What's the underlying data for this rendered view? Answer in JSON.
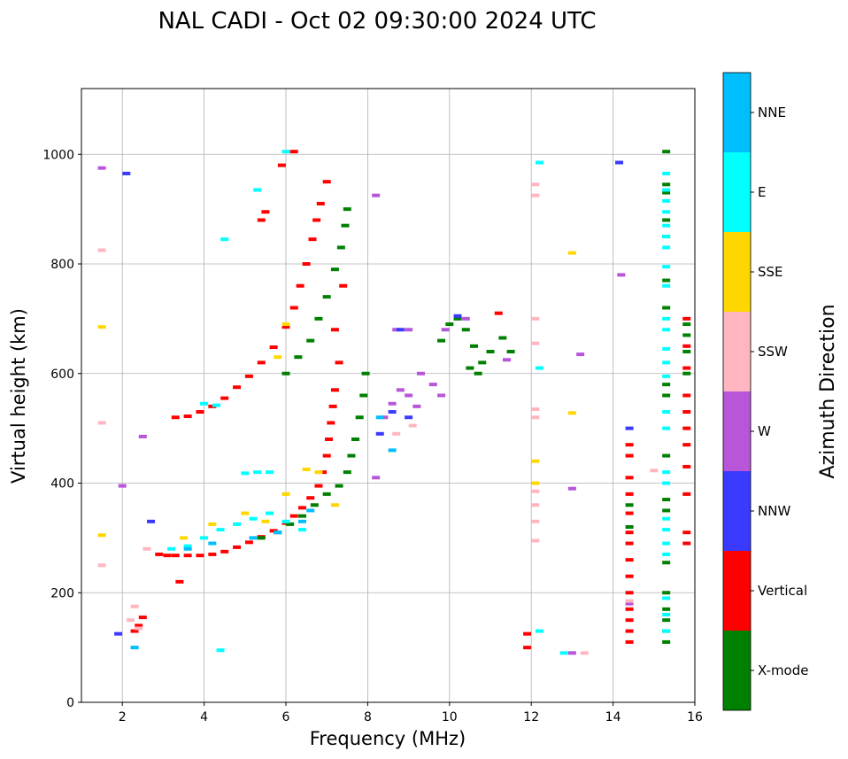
{
  "chart_data": {
    "type": "scatter",
    "title": "NAL CADI - Oct 02 09:30:00 2024 UTC",
    "xlabel": "Frequency (MHz)",
    "ylabel": "Virtual height (km)",
    "xlim": [
      1,
      16
    ],
    "ylim": [
      0,
      1120
    ],
    "xticks": [
      2,
      4,
      6,
      8,
      10,
      12,
      14,
      16
    ],
    "xtick_labels": [
      "2",
      "4",
      "6",
      "8",
      "10",
      "12",
      "14",
      "16"
    ],
    "yticks": [
      0,
      200,
      400,
      600,
      800,
      1000
    ],
    "ytick_labels": [
      "0",
      "200",
      "400",
      "600",
      "800",
      "1000"
    ],
    "grid": true,
    "colorbar": {
      "title": "Azimuth Direction",
      "categories": [
        "X-mode",
        "Vertical",
        "NNW",
        "W",
        "SSW",
        "SSE",
        "E",
        "NNE"
      ],
      "colors": [
        "#008000",
        "#ff0000",
        "#3a3aff",
        "#b955d9",
        "#ffb6c1",
        "#ffd700",
        "#00ffff",
        "#00bfff"
      ]
    },
    "series": [
      {
        "name": "Vertical",
        "category": "Vertical",
        "points": [
          [
            2.9,
            270
          ],
          [
            3.1,
            268
          ],
          [
            3.3,
            268
          ],
          [
            3.6,
            268
          ],
          [
            3.9,
            268
          ],
          [
            4.2,
            270
          ],
          [
            4.5,
            275
          ],
          [
            4.8,
            283
          ],
          [
            5.1,
            292
          ],
          [
            5.4,
            302
          ],
          [
            5.7,
            313
          ],
          [
            6.0,
            327
          ],
          [
            6.2,
            340
          ],
          [
            6.4,
            355
          ],
          [
            6.6,
            373
          ],
          [
            6.8,
            395
          ],
          [
            6.9,
            420
          ],
          [
            7.0,
            450
          ],
          [
            7.05,
            480
          ],
          [
            7.1,
            510
          ],
          [
            7.15,
            540
          ],
          [
            7.2,
            570
          ],
          [
            3.3,
            520
          ],
          [
            3.6,
            522
          ],
          [
            3.9,
            530
          ],
          [
            4.2,
            540
          ],
          [
            4.5,
            555
          ],
          [
            4.8,
            575
          ],
          [
            5.1,
            595
          ],
          [
            5.4,
            620
          ],
          [
            5.7,
            648
          ],
          [
            6.0,
            685
          ],
          [
            6.2,
            720
          ],
          [
            6.35,
            760
          ],
          [
            6.5,
            800
          ],
          [
            6.65,
            845
          ],
          [
            6.75,
            880
          ],
          [
            6.85,
            910
          ],
          [
            7.0,
            950
          ],
          [
            2.3,
            130
          ],
          [
            2.4,
            140
          ],
          [
            2.5,
            155
          ],
          [
            7.3,
            620
          ],
          [
            7.2,
            680
          ],
          [
            7.4,
            760
          ],
          [
            6.2,
            1005
          ],
          [
            5.9,
            980
          ],
          [
            5.5,
            895
          ],
          [
            5.4,
            880
          ],
          [
            3.4,
            220
          ],
          [
            14.4,
            110
          ],
          [
            14.4,
            130
          ],
          [
            14.4,
            150
          ],
          [
            14.4,
            170
          ],
          [
            14.4,
            200
          ],
          [
            14.4,
            230
          ],
          [
            14.4,
            260
          ],
          [
            14.4,
            290
          ],
          [
            14.4,
            310
          ],
          [
            14.4,
            345
          ],
          [
            14.4,
            380
          ],
          [
            14.4,
            410
          ],
          [
            14.4,
            450
          ],
          [
            14.4,
            470
          ],
          [
            15.8,
            290
          ],
          [
            15.8,
            310
          ],
          [
            15.8,
            380
          ],
          [
            15.8,
            430
          ],
          [
            15.8,
            470
          ],
          [
            15.8,
            500
          ],
          [
            15.8,
            530
          ],
          [
            15.8,
            560
          ],
          [
            15.8,
            610
          ],
          [
            15.8,
            650
          ],
          [
            15.8,
            700
          ],
          [
            11.2,
            710
          ],
          [
            11.9,
            125
          ],
          [
            11.9,
            100
          ]
        ]
      },
      {
        "name": "X-mode",
        "category": "X-mode",
        "points": [
          [
            5.4,
            300
          ],
          [
            5.8,
            310
          ],
          [
            6.1,
            325
          ],
          [
            6.4,
            340
          ],
          [
            6.7,
            360
          ],
          [
            7.0,
            380
          ],
          [
            7.3,
            395
          ],
          [
            7.5,
            420
          ],
          [
            7.6,
            450
          ],
          [
            7.7,
            480
          ],
          [
            7.8,
            520
          ],
          [
            7.9,
            560
          ],
          [
            7.95,
            600
          ],
          [
            6.0,
            600
          ],
          [
            6.3,
            630
          ],
          [
            6.6,
            660
          ],
          [
            6.8,
            700
          ],
          [
            7.0,
            740
          ],
          [
            7.2,
            790
          ],
          [
            7.35,
            830
          ],
          [
            7.45,
            870
          ],
          [
            7.5,
            900
          ],
          [
            9.8,
            660
          ],
          [
            10.0,
            690
          ],
          [
            10.2,
            700
          ],
          [
            10.4,
            680
          ],
          [
            10.6,
            650
          ],
          [
            10.8,
            620
          ],
          [
            11.0,
            640
          ],
          [
            11.3,
            665
          ],
          [
            11.5,
            640
          ],
          [
            10.7,
            600
          ],
          [
            10.5,
            610
          ],
          [
            14.4,
            320
          ],
          [
            14.4,
            360
          ],
          [
            15.3,
            110
          ],
          [
            15.3,
            130
          ],
          [
            15.3,
            150
          ],
          [
            15.3,
            170
          ],
          [
            15.3,
            200
          ],
          [
            15.3,
            255
          ],
          [
            15.3,
            350
          ],
          [
            15.3,
            370
          ],
          [
            15.3,
            450
          ],
          [
            15.3,
            560
          ],
          [
            15.3,
            580
          ],
          [
            15.3,
            720
          ],
          [
            15.3,
            770
          ],
          [
            15.3,
            850
          ],
          [
            15.3,
            880
          ],
          [
            15.3,
            930
          ],
          [
            15.3,
            945
          ],
          [
            15.3,
            1005
          ],
          [
            15.8,
            600
          ],
          [
            15.8,
            640
          ],
          [
            15.8,
            670
          ],
          [
            15.8,
            690
          ]
        ]
      },
      {
        "name": "E",
        "category": "E",
        "points": [
          [
            3.2,
            280
          ],
          [
            3.6,
            285
          ],
          [
            4.0,
            300
          ],
          [
            4.4,
            315
          ],
          [
            4.8,
            325
          ],
          [
            5.2,
            335
          ],
          [
            5.6,
            345
          ],
          [
            6.0,
            330
          ],
          [
            6.4,
            315
          ],
          [
            5.0,
            418
          ],
          [
            5.3,
            420
          ],
          [
            5.6,
            420
          ],
          [
            4.0,
            545
          ],
          [
            4.3,
            542
          ],
          [
            5.3,
            935
          ],
          [
            4.5,
            845
          ],
          [
            6.0,
            1005
          ],
          [
            15.3,
            130
          ],
          [
            15.3,
            160
          ],
          [
            15.3,
            190
          ],
          [
            15.3,
            270
          ],
          [
            15.3,
            290
          ],
          [
            15.3,
            315
          ],
          [
            15.3,
            335
          ],
          [
            15.3,
            400
          ],
          [
            15.3,
            420
          ],
          [
            15.3,
            500
          ],
          [
            15.3,
            530
          ],
          [
            15.3,
            595
          ],
          [
            15.3,
            620
          ],
          [
            15.3,
            645
          ],
          [
            15.3,
            680
          ],
          [
            15.3,
            700
          ],
          [
            15.3,
            760
          ],
          [
            15.3,
            795
          ],
          [
            15.3,
            830
          ],
          [
            15.3,
            850
          ],
          [
            15.3,
            870
          ],
          [
            15.3,
            895
          ],
          [
            15.3,
            915
          ],
          [
            15.3,
            935
          ],
          [
            15.3,
            965
          ],
          [
            12.2,
            130
          ],
          [
            12.2,
            985
          ],
          [
            12.2,
            610
          ],
          [
            12.8,
            90
          ],
          [
            4.4,
            95
          ]
        ]
      },
      {
        "name": "W",
        "category": "W",
        "points": [
          [
            8.4,
            520
          ],
          [
            8.6,
            545
          ],
          [
            8.8,
            570
          ],
          [
            9.0,
            560
          ],
          [
            9.2,
            540
          ],
          [
            8.7,
            680
          ],
          [
            9.0,
            680
          ],
          [
            9.3,
            600
          ],
          [
            9.6,
            580
          ],
          [
            9.8,
            560
          ],
          [
            9.9,
            680
          ],
          [
            10.4,
            700
          ],
          [
            11.4,
            625
          ],
          [
            8.2,
            410
          ],
          [
            8.2,
            925
          ],
          [
            13.0,
            390
          ],
          [
            13.2,
            635
          ],
          [
            14.2,
            780
          ],
          [
            14.4,
            180
          ],
          [
            13.0,
            90
          ],
          [
            2.0,
            395
          ],
          [
            2.5,
            485
          ],
          [
            1.5,
            975
          ]
        ]
      },
      {
        "name": "NNW",
        "category": "NNW",
        "points": [
          [
            8.3,
            490
          ],
          [
            8.6,
            530
          ],
          [
            9.0,
            520
          ],
          [
            8.8,
            680
          ],
          [
            10.2,
            705
          ],
          [
            14.15,
            985
          ],
          [
            14.4,
            500
          ],
          [
            1.9,
            125
          ],
          [
            2.1,
            965
          ],
          [
            2.7,
            330
          ]
        ]
      },
      {
        "name": "SSW",
        "category": "SSW",
        "points": [
          [
            2.2,
            150
          ],
          [
            2.3,
            175
          ],
          [
            2.4,
            135
          ],
          [
            2.6,
            280
          ],
          [
            8.7,
            490
          ],
          [
            9.1,
            505
          ],
          [
            12.1,
            295
          ],
          [
            12.1,
            330
          ],
          [
            12.1,
            360
          ],
          [
            12.1,
            385
          ],
          [
            12.1,
            520
          ],
          [
            12.1,
            535
          ],
          [
            12.1,
            655
          ],
          [
            12.1,
            700
          ],
          [
            12.1,
            925
          ],
          [
            12.1,
            945
          ],
          [
            14.4,
            185
          ],
          [
            15.0,
            423
          ],
          [
            13.3,
            90
          ],
          [
            1.5,
            250
          ],
          [
            1.5,
            510
          ],
          [
            1.5,
            825
          ]
        ]
      },
      {
        "name": "SSE",
        "category": "SSE",
        "points": [
          [
            3.5,
            300
          ],
          [
            4.2,
            325
          ],
          [
            5.0,
            345
          ],
          [
            5.5,
            330
          ],
          [
            6.0,
            380
          ],
          [
            6.8,
            420
          ],
          [
            6.0,
            690
          ],
          [
            5.8,
            630
          ],
          [
            12.1,
            400
          ],
          [
            12.1,
            440
          ],
          [
            13.0,
            528
          ],
          [
            13.0,
            820
          ],
          [
            1.5,
            305
          ],
          [
            1.5,
            685
          ],
          [
            7.2,
            360
          ],
          [
            6.5,
            425
          ]
        ]
      },
      {
        "name": "NNE",
        "category": "NNE",
        "points": [
          [
            3.6,
            280
          ],
          [
            4.2,
            290
          ],
          [
            5.2,
            300
          ],
          [
            5.8,
            310
          ],
          [
            6.4,
            330
          ],
          [
            6.6,
            350
          ],
          [
            8.3,
            520
          ],
          [
            8.6,
            460
          ],
          [
            2.3,
            100
          ]
        ]
      }
    ]
  }
}
